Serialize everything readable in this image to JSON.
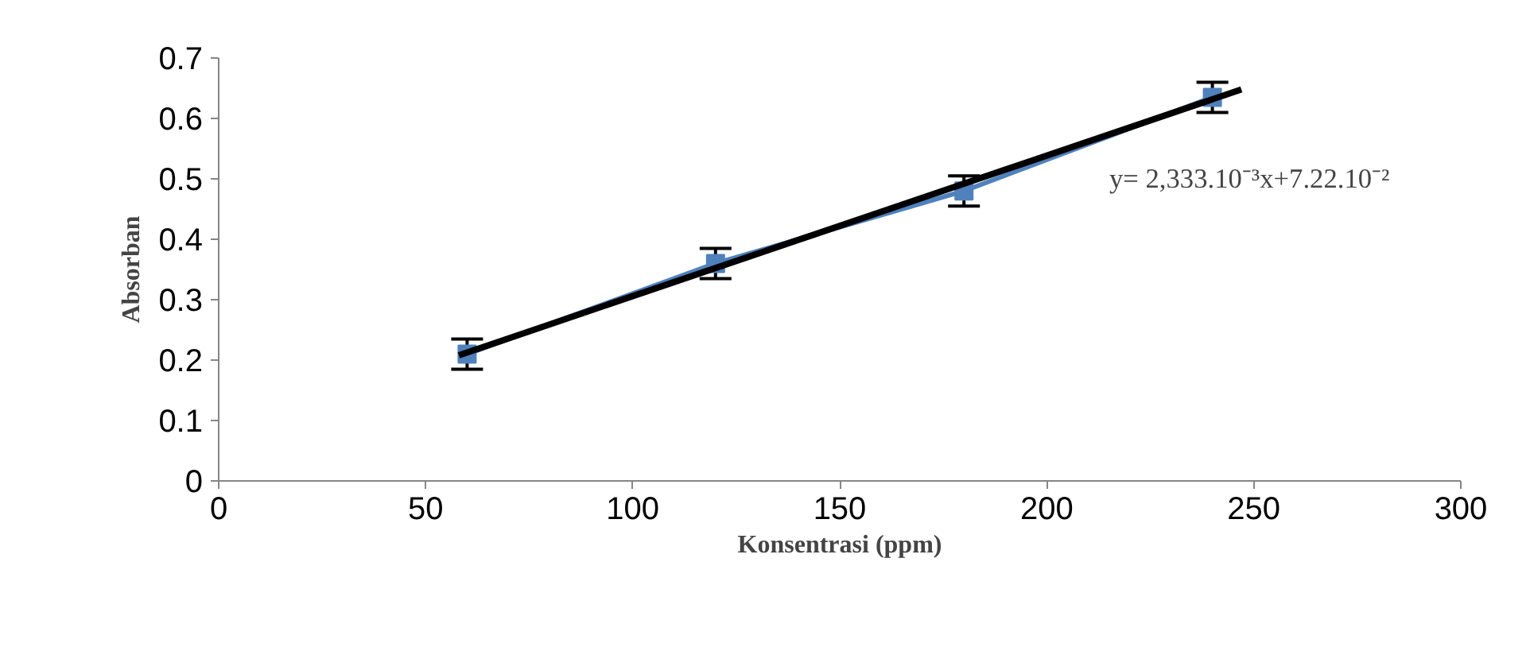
{
  "chart_data": {
    "type": "line",
    "xlabel": "Konsentrasi (ppm)",
    "ylabel": "Absorban",
    "x": [
      60,
      120,
      180,
      240
    ],
    "series": [
      {
        "color": "#4f81bd",
        "values": [
          0.21,
          0.36,
          0.48,
          0.635
        ],
        "errors": [
          0.025,
          0.025,
          0.025,
          0.025
        ],
        "marker": "square"
      },
      {
        "type": "line",
        "color": "#000000",
        "x": [
          58,
          247
        ],
        "values": [
          0.208,
          0.648
        ],
        "marker": "none"
      }
    ],
    "xlim": [
      0,
      300
    ],
    "xticks": [
      0,
      50,
      100,
      150,
      200,
      250,
      300
    ],
    "ylim": [
      0,
      0.7
    ],
    "yticks": [
      0,
      0.1,
      0.2,
      0.3,
      0.4,
      0.5,
      0.6,
      0.7
    ],
    "grid": false,
    "annotations": [
      "y= 2,333.10⁻³x+7.22.10⁻²"
    ]
  }
}
